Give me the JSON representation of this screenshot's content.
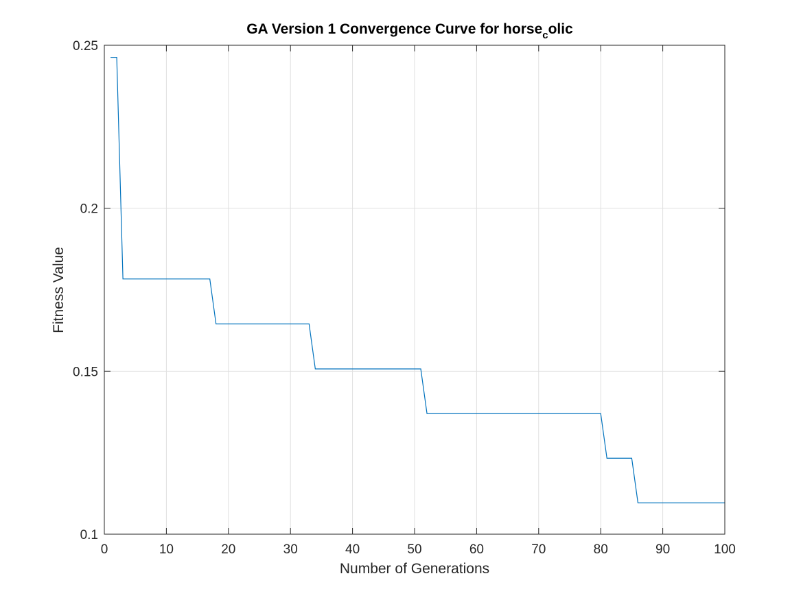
{
  "chart_data": {
    "type": "line",
    "title": {
      "main": "GA Version 1 Convergence Curve for horse",
      "subscript": "c",
      "after": "olic"
    },
    "xlabel": "Number of Generations",
    "ylabel": "Fitness Value",
    "xlim": [
      0,
      100
    ],
    "ylim": [
      0.1,
      0.25
    ],
    "xticks": [
      0,
      10,
      20,
      30,
      40,
      50,
      60,
      70,
      80,
      90,
      100
    ],
    "xtick_labels": [
      "0",
      "10",
      "20",
      "30",
      "40",
      "50",
      "60",
      "70",
      "80",
      "90",
      "100"
    ],
    "yticks": [
      0.1,
      0.15,
      0.2,
      0.25
    ],
    "ytick_labels": [
      "0.1",
      "0.15",
      "0.2",
      "0.25"
    ],
    "grid": true,
    "legend": "none",
    "series": [
      {
        "color": "#0072BD",
        "x": [
          1,
          2,
          3,
          4,
          5,
          6,
          7,
          8,
          9,
          10,
          11,
          12,
          13,
          14,
          15,
          16,
          17,
          18,
          19,
          20,
          21,
          22,
          23,
          24,
          25,
          26,
          27,
          28,
          29,
          30,
          31,
          32,
          33,
          34,
          35,
          36,
          37,
          38,
          39,
          40,
          41,
          42,
          43,
          44,
          45,
          46,
          47,
          48,
          49,
          50,
          51,
          52,
          53,
          54,
          55,
          56,
          57,
          58,
          59,
          60,
          61,
          62,
          63,
          64,
          65,
          66,
          67,
          68,
          69,
          70,
          71,
          72,
          73,
          74,
          75,
          76,
          77,
          78,
          79,
          80,
          81,
          82,
          83,
          84,
          85,
          86,
          87,
          88,
          89,
          90,
          91,
          92,
          93,
          94,
          95,
          96,
          97,
          98,
          99,
          100
        ],
        "y": [
          0.2463,
          0.2463,
          0.1783,
          0.1783,
          0.1783,
          0.1783,
          0.1783,
          0.1783,
          0.1783,
          0.1783,
          0.1783,
          0.1783,
          0.1783,
          0.1783,
          0.1783,
          0.1783,
          0.1783,
          0.1645,
          0.1645,
          0.1645,
          0.1645,
          0.1645,
          0.1645,
          0.1645,
          0.1645,
          0.1645,
          0.1645,
          0.1645,
          0.1645,
          0.1645,
          0.1645,
          0.1645,
          0.1645,
          0.1507,
          0.1507,
          0.1507,
          0.1507,
          0.1507,
          0.1507,
          0.1507,
          0.1507,
          0.1507,
          0.1507,
          0.1507,
          0.1507,
          0.1507,
          0.1507,
          0.1507,
          0.1507,
          0.1507,
          0.1507,
          0.137,
          0.137,
          0.137,
          0.137,
          0.137,
          0.137,
          0.137,
          0.137,
          0.137,
          0.137,
          0.137,
          0.137,
          0.137,
          0.137,
          0.137,
          0.137,
          0.137,
          0.137,
          0.137,
          0.137,
          0.137,
          0.137,
          0.137,
          0.137,
          0.137,
          0.137,
          0.137,
          0.137,
          0.137,
          0.1233,
          0.1233,
          0.1233,
          0.1233,
          0.1233,
          0.1096,
          0.1096,
          0.1096,
          0.1096,
          0.1096,
          0.1096,
          0.1096,
          0.1096,
          0.1096,
          0.1096,
          0.1096,
          0.1096,
          0.1096,
          0.1096,
          0.1096
        ]
      }
    ]
  }
}
